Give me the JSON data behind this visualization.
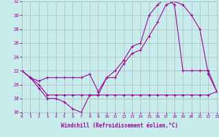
{
  "xlabel": "Windchill (Refroidissement éolien,°C)",
  "bg_color": "#c8ecec",
  "grid_color": "#aabbbb",
  "line_color": "#990099",
  "x_min": 0,
  "x_max": 23,
  "y_min": 16,
  "y_max": 32,
  "series1": {
    "x": [
      0,
      1,
      2,
      3,
      4,
      5,
      6,
      7,
      8,
      9,
      10,
      11,
      12,
      13,
      14,
      15,
      16,
      17,
      18,
      19,
      20,
      21,
      22,
      23
    ],
    "y": [
      22,
      21,
      19.5,
      18,
      18,
      17.5,
      16.5,
      16,
      18.5,
      18.5,
      21,
      21,
      23,
      24.5,
      25,
      27,
      29,
      31.5,
      32,
      31.5,
      30,
      28,
      21.5,
      19
    ]
  },
  "series2": {
    "x": [
      0,
      1,
      2,
      3,
      4,
      5,
      6,
      7,
      8,
      9,
      10,
      11,
      12,
      13,
      14,
      15,
      16,
      17,
      18,
      19,
      20,
      21,
      22,
      23
    ],
    "y": [
      22,
      21,
      20,
      18.5,
      18.5,
      18.5,
      18.5,
      18.5,
      18.5,
      18.5,
      18.5,
      18.5,
      18.5,
      18.5,
      18.5,
      18.5,
      18.5,
      18.5,
      18.5,
      18.5,
      18.5,
      18.5,
      18.5,
      19
    ]
  },
  "series3": {
    "x": [
      0,
      1,
      2,
      3,
      4,
      5,
      6,
      7,
      8,
      9,
      10,
      11,
      12,
      13,
      14,
      15,
      16,
      17,
      18,
      19,
      20,
      21,
      22,
      23
    ],
    "y": [
      22,
      21,
      20.5,
      21,
      21,
      21,
      21,
      21,
      21.5,
      19,
      21,
      22,
      23.5,
      25.5,
      26,
      30,
      31.5,
      32.5,
      31.5,
      22,
      22,
      22,
      22,
      19
    ]
  }
}
